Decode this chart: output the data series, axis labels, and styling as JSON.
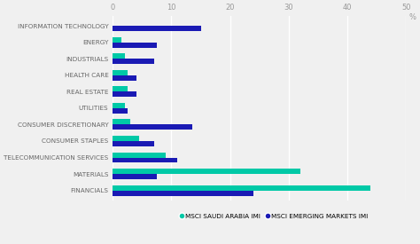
{
  "categories": [
    "FINANCIALS",
    "MATERIALS",
    "TELECOMMUNICATION SERVICES",
    "CONSUMER STAPLES",
    "CONSUMER DISCRETIONARY",
    "UTILITIES",
    "REAL ESTATE",
    "HEALTH CARE",
    "INDUSTRIALS",
    "ENERGY",
    "INFORMATION TECHNOLOGY"
  ],
  "saudi_arabia": [
    44.0,
    32.0,
    9.0,
    4.5,
    3.0,
    2.0,
    2.5,
    2.5,
    2.0,
    1.5,
    0.0
  ],
  "emerging_markets": [
    24.0,
    7.5,
    11.0,
    7.0,
    13.5,
    2.5,
    4.0,
    4.0,
    7.0,
    7.5,
    15.0
  ],
  "color_saudi": "#00C9A7",
  "color_em": "#1A1AB4",
  "xlim": [
    0,
    50
  ],
  "xticks": [
    0,
    10,
    20,
    30,
    40,
    50
  ],
  "xlabel": "%",
  "legend_saudi": "MSCI SAUDI ARABIA IMI",
  "legend_em": "MSCI EMERGING MARKETS IMI",
  "background_color": "#f0f0f0",
  "bar_height": 0.32,
  "label_fontsize": 5.2,
  "tick_fontsize": 6.0
}
